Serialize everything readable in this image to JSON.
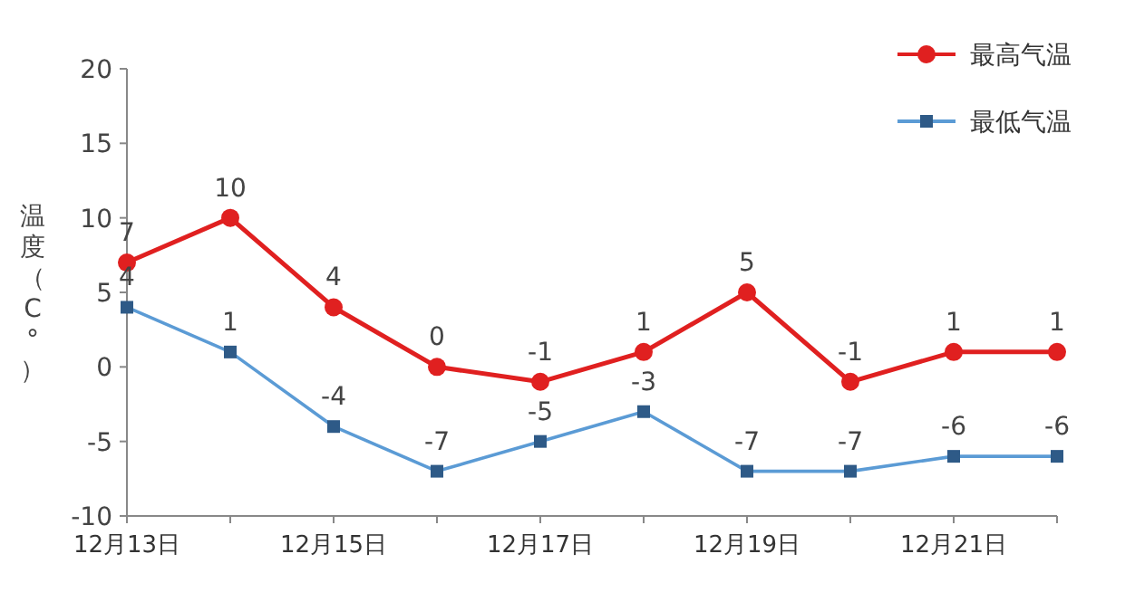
{
  "chart_data": {
    "type": "line",
    "ylabel": "温度（C°）",
    "categories": [
      "12月13日",
      null,
      "12月15日",
      null,
      "12月17日",
      null,
      "12月19日",
      null,
      "12月21日",
      null
    ],
    "series": [
      {
        "name": "最高气温",
        "color": "#e02020",
        "marker": "circle",
        "values": [
          7,
          10,
          4,
          0,
          -1,
          1,
          5,
          -1,
          1,
          1
        ]
      },
      {
        "name": "最低气温",
        "color": "#5b9bd5",
        "marker": "square",
        "values": [
          4,
          1,
          -4,
          -7,
          -5,
          -3,
          -7,
          -7,
          -6,
          -6
        ]
      }
    ],
    "ylim": [
      -10,
      20
    ],
    "yticks": [
      -10,
      -5,
      0,
      5,
      10,
      15,
      20
    ],
    "data_labels": true,
    "legend": "top right",
    "grid": false
  }
}
